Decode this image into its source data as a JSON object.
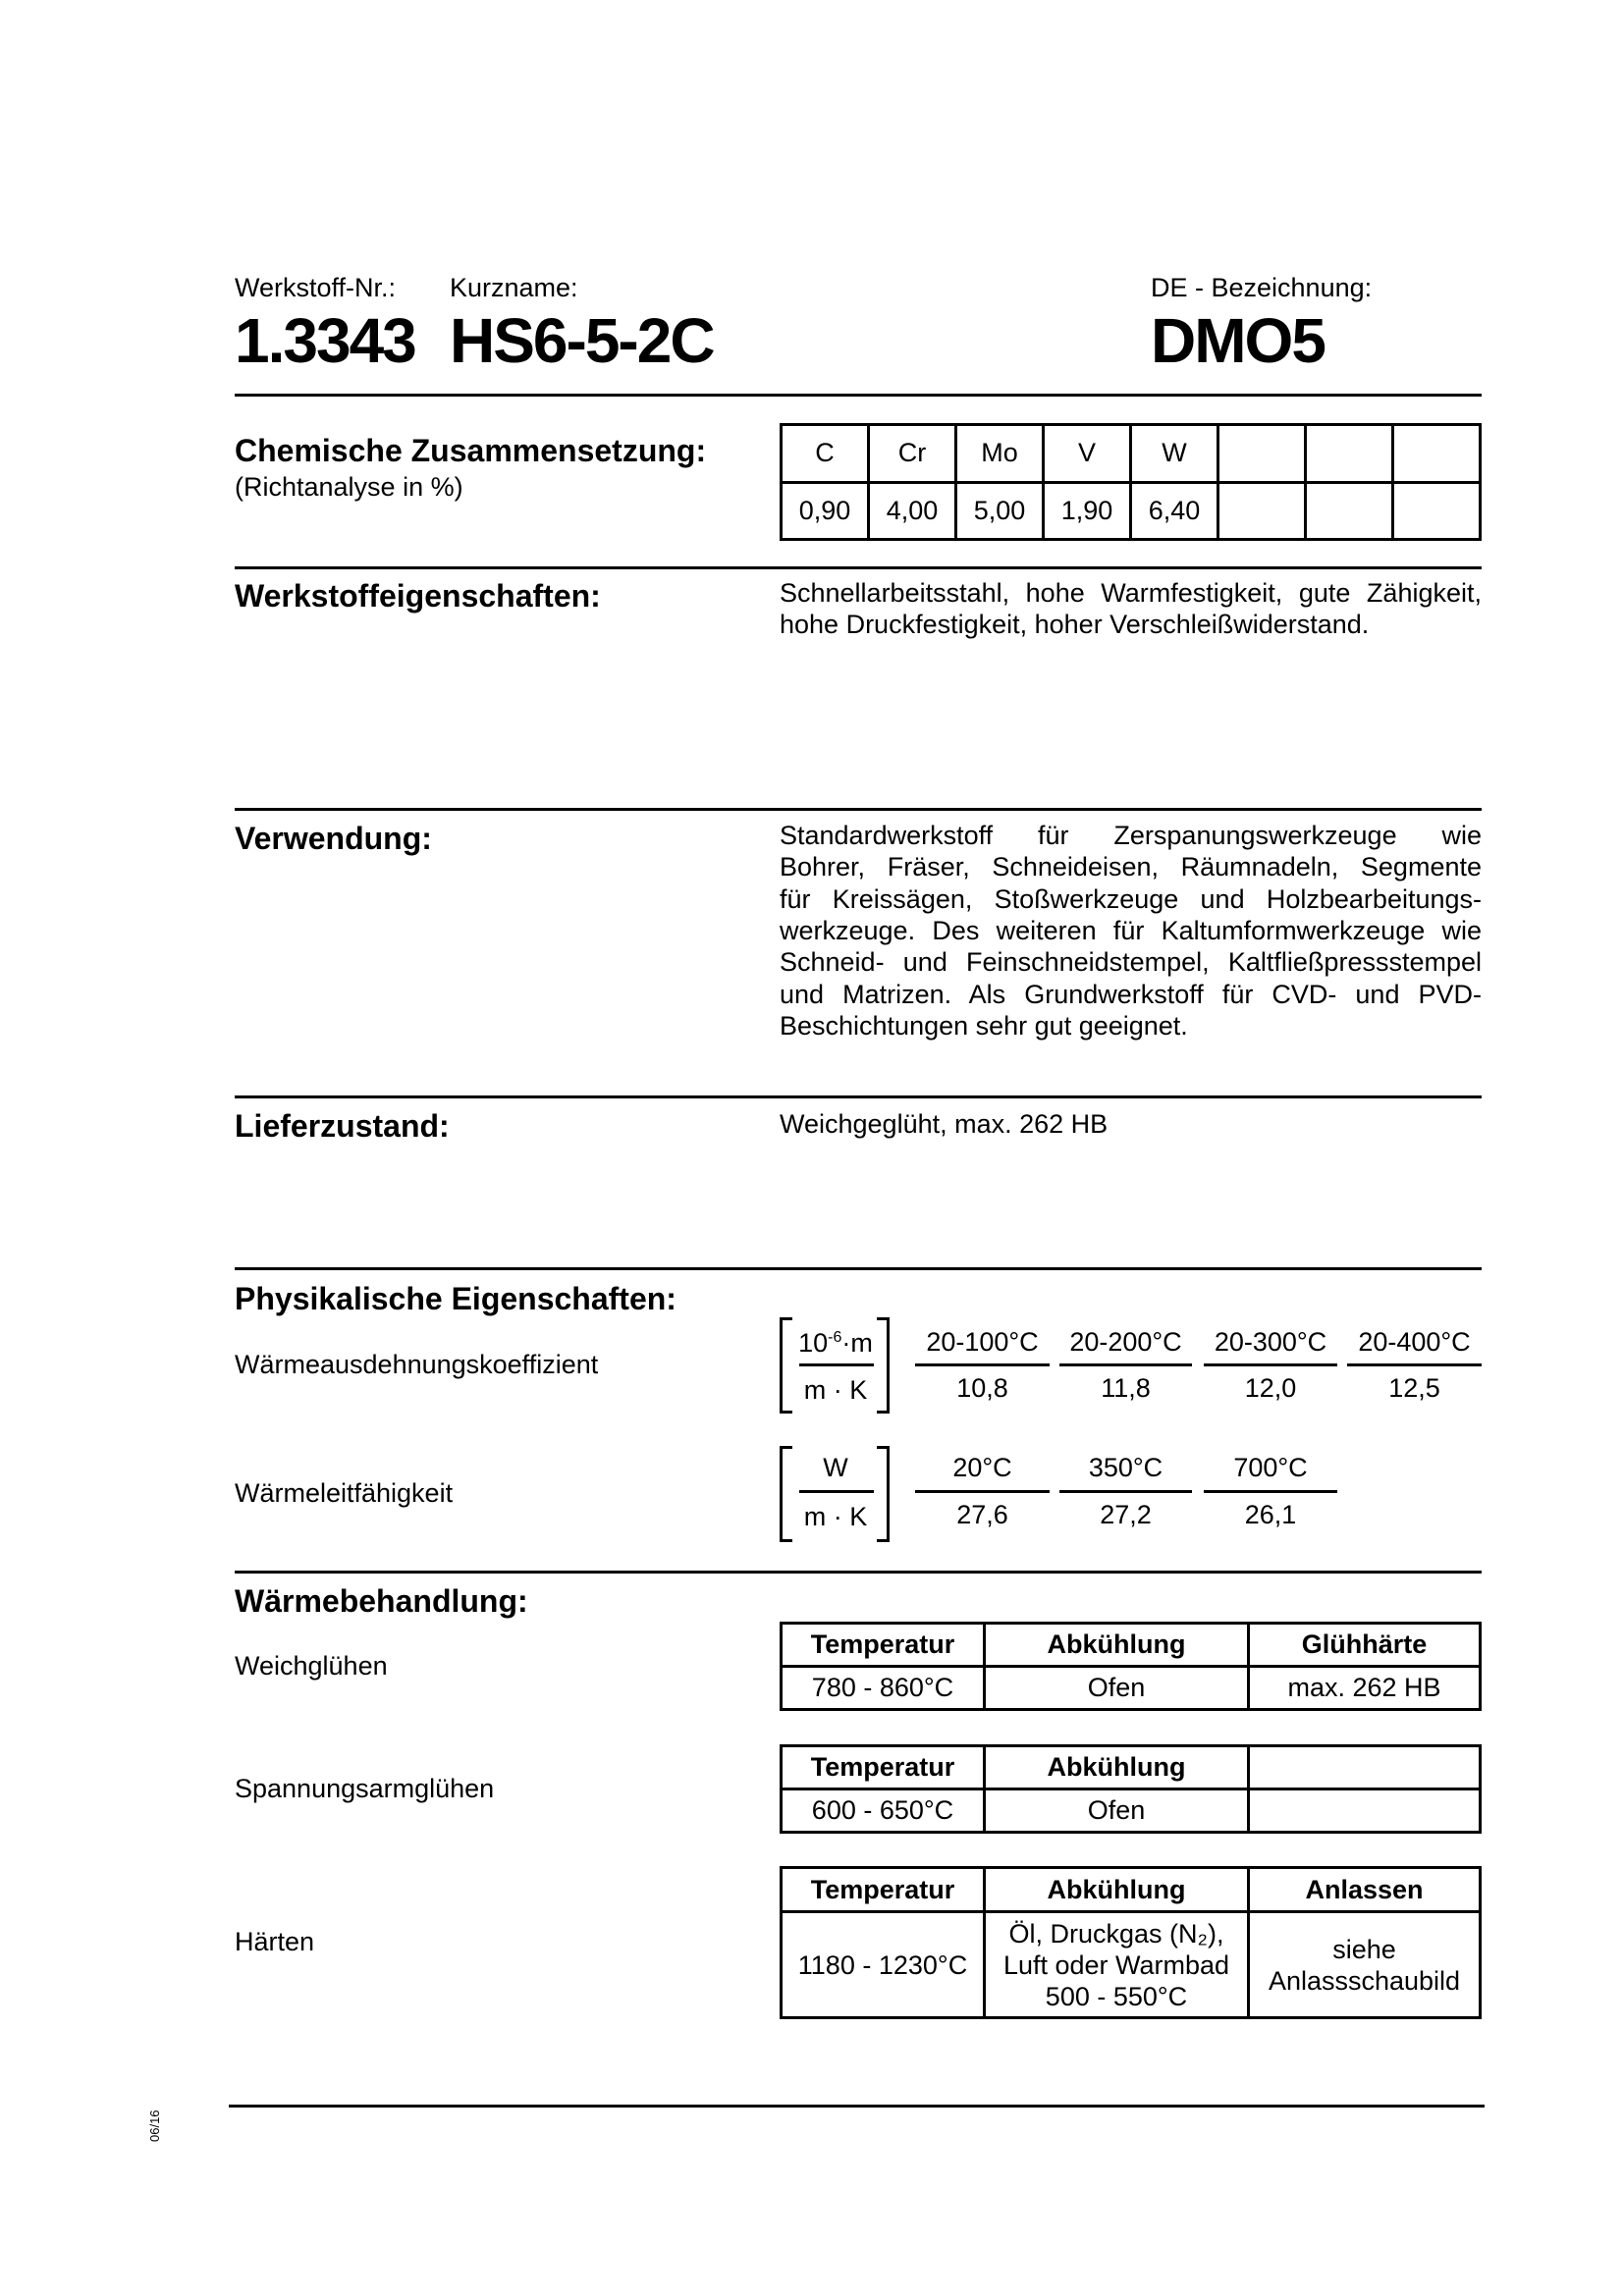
{
  "header": {
    "werkstoff_label": "Werkstoff-Nr.:",
    "werkstoff_nr": "1.3343",
    "kurzname_label": "Kurzname:",
    "kurzname": "HS6-5-2C",
    "de_label": "DE - Bezeichnung:",
    "de_value": "DMO5"
  },
  "chem": {
    "title": "Chemische Zusammensetzung:",
    "subtitle": "(Richtanalyse in %)",
    "elements": [
      "C",
      "Cr",
      "Mo",
      "V",
      "W",
      "",
      "",
      ""
    ],
    "values": [
      "0,90",
      "4,00",
      "5,00",
      "1,90",
      "6,40",
      "",
      "",
      ""
    ]
  },
  "eigenschaften": {
    "title": "Werkstoffeigenschaften:",
    "lines": [
      "Schnellarbeitsstahl, hohe Warmfestigkeit, gute Zähigkeit,",
      "hohe Druckfestigkeit, hoher Verschleißwiderstand."
    ]
  },
  "verwendung": {
    "title": "Verwendung:",
    "lines": [
      "Standardwerkstoff für Zerspanungswerkzeuge wie",
      "Bohrer, Fräser, Schneideisen, Räumnadeln, Segmente",
      "für Kreissägen, Stoßwerkzeuge und Holzbearbeitungs-",
      "werkzeuge. Des weiteren für Kaltumformwerkzeuge wie",
      "Schneid- und Feinschneidstempel, Kaltfließpressstempel",
      "und Matrizen. Als Grundwerkstoff für CVD- und PVD-",
      "Beschichtungen sehr gut geeignet."
    ]
  },
  "lieferzustand": {
    "title": "Lieferzustand:",
    "value": "Weichgeglüht, max. 262 HB"
  },
  "physik": {
    "title": "Physikalische Eigenschaften:",
    "ausdehnung": {
      "label": "Wärmeausdehnungskoeffizient",
      "unit_num_base": "10",
      "unit_num_exp": "-6",
      "unit_num_tail": "·m",
      "unit_den": "m · K",
      "temps": [
        "20-100°C",
        "20-200°C",
        "20-300°C",
        "20-400°C"
      ],
      "values": [
        "10,8",
        "11,8",
        "12,0",
        "12,5"
      ]
    },
    "leitfaehigkeit": {
      "label": "Wärmeleitfähigkeit",
      "unit_num": "W",
      "unit_den": "m · K",
      "temps": [
        "20°C",
        "350°C",
        "700°C"
      ],
      "values": [
        "27,6",
        "27,2",
        "26,1"
      ]
    }
  },
  "waerme": {
    "title": "Wärmebehandlung:",
    "weich": {
      "label": "Weichglühen",
      "headers": [
        "Temperatur",
        "Abkühlung",
        "Glühhärte"
      ],
      "values": [
        "780 - 860°C",
        "Ofen",
        "max. 262 HB"
      ]
    },
    "spannung": {
      "label": "Spannungsarmglühen",
      "headers": [
        "Temperatur",
        "Abkühlung",
        ""
      ],
      "values": [
        "600 - 650°C",
        "Ofen",
        ""
      ]
    },
    "haerten": {
      "label": "Härten",
      "headers": [
        "Temperatur",
        "Abkühlung",
        "Anlassen"
      ],
      "temp": "1180 - 1230°C",
      "cool_lines": [
        "Öl, Druckgas (N₂),",
        "Luft oder Warmbad",
        "500 - 550°C"
      ],
      "anlass_lines": [
        "siehe",
        "Anlassschaubild"
      ]
    }
  },
  "footer": {
    "date": "06/16"
  }
}
